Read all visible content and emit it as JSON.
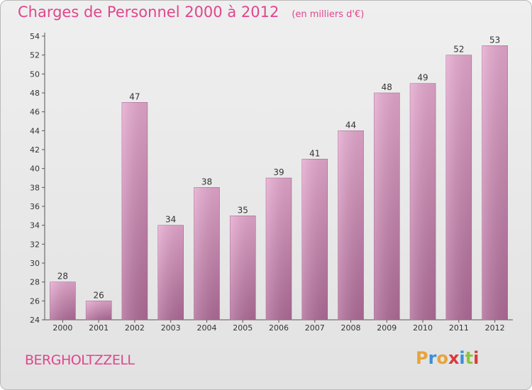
{
  "header": {
    "title": "Charges de Personnel 2000 à 2012",
    "subtitle": "(en milliers d'€)"
  },
  "footer": {
    "city": "BERGHOLTZZELL",
    "logo_text": "Proxiti",
    "logo_colors": [
      "#e8a33a",
      "#3a8fd8",
      "#e8a33a",
      "#d83a3a",
      "#3a8fd8",
      "#8cc63f",
      "#d83a3a"
    ]
  },
  "colors": {
    "accent": "#e0458d",
    "bar_top": "#e6a9cf",
    "bar_bottom": "#b06c98"
  },
  "chart_data": {
    "type": "bar",
    "categories": [
      "2000",
      "2001",
      "2002",
      "2003",
      "2004",
      "2005",
      "2006",
      "2007",
      "2008",
      "2009",
      "2010",
      "2011",
      "2012"
    ],
    "values": [
      28,
      26,
      47,
      34,
      38,
      35,
      39,
      41,
      44,
      48,
      49,
      52,
      53
    ],
    "ylim": [
      24,
      54
    ],
    "yticks": [
      24,
      26,
      28,
      30,
      32,
      34,
      36,
      38,
      40,
      42,
      44,
      46,
      48,
      50,
      52,
      54
    ],
    "grid": false,
    "data_labels": true
  }
}
